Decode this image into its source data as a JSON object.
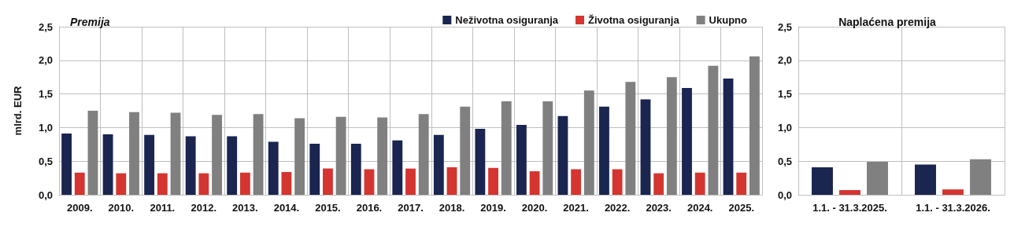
{
  "chart_data": [
    {
      "type": "bar",
      "title": "Premija",
      "ylabel": "mlrd. EUR",
      "categories": [
        "2009.",
        "2010.",
        "2011.",
        "2012.",
        "2013.",
        "2014.",
        "2015.",
        "2016.",
        "2017.",
        "2018.",
        "2019.",
        "2020.",
        "2021.",
        "2022.",
        "2023.",
        "2024.",
        "2025."
      ],
      "series": [
        {
          "name": "Neživotna osiguranja",
          "color": "#1a2550",
          "values": [
            0.91,
            0.9,
            0.89,
            0.87,
            0.87,
            0.79,
            0.76,
            0.76,
            0.81,
            0.89,
            0.98,
            1.04,
            1.17,
            1.31,
            1.42,
            1.59,
            1.73
          ]
        },
        {
          "name": "Životna osiguranja",
          "color": "#d43530",
          "values": [
            0.33,
            0.32,
            0.32,
            0.32,
            0.33,
            0.34,
            0.39,
            0.38,
            0.39,
            0.41,
            0.4,
            0.35,
            0.38,
            0.38,
            0.32,
            0.33,
            0.33
          ]
        },
        {
          "name": "Ukupno",
          "color": "#808080",
          "values": [
            1.25,
            1.23,
            1.22,
            1.19,
            1.2,
            1.14,
            1.16,
            1.15,
            1.2,
            1.31,
            1.39,
            1.39,
            1.55,
            1.68,
            1.75,
            1.92,
            2.06
          ]
        }
      ],
      "ylim": [
        0,
        2.5
      ],
      "yticks": [
        {
          "value": 0,
          "label": "0,0"
        },
        {
          "value": 0.5,
          "label": "0,5"
        },
        {
          "value": 1,
          "label": "1,0"
        },
        {
          "value": 1.5,
          "label": "1,5"
        },
        {
          "value": 2,
          "label": "2,0"
        },
        {
          "value": 2.5,
          "label": "2,5"
        }
      ],
      "grid": true,
      "legend": "top right"
    },
    {
      "type": "bar",
      "title": "Naplaćena premija",
      "categories": [
        "1.1. - 31.3.2025.",
        "1.1. - 31.3.2026."
      ],
      "series": [
        {
          "color": "#1a2550",
          "values": [
            0.41,
            0.45
          ]
        },
        {
          "color": "#d43530",
          "values": [
            0.07,
            0.08
          ]
        },
        {
          "color": "#808080",
          "values": [
            0.49,
            0.53
          ]
        }
      ],
      "ylim": [
        0,
        2.5
      ],
      "yticks": [
        {
          "value": 0,
          "label": "0,0"
        },
        {
          "value": 0.5,
          "label": "0,5"
        },
        {
          "value": 1,
          "label": "1,0"
        },
        {
          "value": 1.5,
          "label": "1,5"
        },
        {
          "value": 2,
          "label": "2,0"
        },
        {
          "value": 2.5,
          "label": "2,5"
        }
      ],
      "grid": true,
      "legend": false
    }
  ]
}
